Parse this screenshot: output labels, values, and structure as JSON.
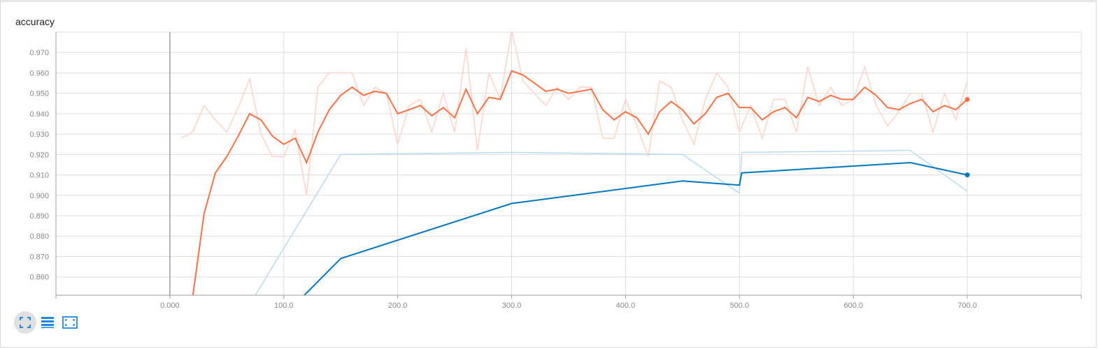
{
  "chart_data": {
    "type": "line",
    "title": "accuracy",
    "xlim": [
      -100,
      800
    ],
    "ylim": [
      0.851,
      0.98
    ],
    "x_ticks": [
      0,
      100,
      200,
      300,
      400,
      500,
      600,
      700
    ],
    "x_tick_labels": [
      "0.000",
      "100.0",
      "200.0",
      "300.0",
      "400.0",
      "500.0",
      "600.0",
      "700.0"
    ],
    "y_ticks": [
      0.86,
      0.87,
      0.88,
      0.89,
      0.9,
      0.91,
      0.92,
      0.93,
      0.94,
      0.95,
      0.96,
      0.97
    ],
    "y_tick_labels": [
      "0.860",
      "0.870",
      "0.880",
      "0.890",
      "0.900",
      "0.910",
      "0.920",
      "0.930",
      "0.940",
      "0.950",
      "0.960",
      "0.970"
    ],
    "grid": true,
    "series": [
      {
        "color": "#ff7043",
        "raw_color": "#ffd3c6",
        "x": [
          10,
          20,
          30,
          40,
          50,
          60,
          70,
          80,
          90,
          100,
          110,
          120,
          130,
          140,
          150,
          160,
          170,
          180,
          190,
          200,
          210,
          220,
          230,
          240,
          250,
          260,
          270,
          280,
          290,
          300,
          310,
          320,
          330,
          340,
          350,
          360,
          370,
          380,
          390,
          400,
          410,
          420,
          430,
          440,
          450,
          460,
          470,
          480,
          490,
          500,
          510,
          520,
          530,
          540,
          550,
          560,
          570,
          580,
          590,
          600,
          610,
          620,
          630,
          640,
          650,
          660,
          670,
          680,
          690,
          700
        ],
        "raw": [
          0.928,
          0.931,
          0.944,
          0.937,
          0.931,
          0.943,
          0.957,
          0.93,
          0.919,
          0.919,
          0.932,
          0.9,
          0.953,
          0.96,
          0.96,
          0.96,
          0.944,
          0.953,
          0.95,
          0.925,
          0.944,
          0.947,
          0.931,
          0.95,
          0.931,
          0.972,
          0.922,
          0.96,
          0.947,
          0.981,
          0.956,
          0.95,
          0.944,
          0.953,
          0.947,
          0.953,
          0.953,
          0.928,
          0.928,
          0.947,
          0.934,
          0.919,
          0.956,
          0.953,
          0.937,
          0.925,
          0.947,
          0.96,
          0.953,
          0.931,
          0.944,
          0.928,
          0.947,
          0.947,
          0.931,
          0.963,
          0.944,
          0.953,
          0.944,
          0.947,
          0.963,
          0.944,
          0.934,
          0.941,
          0.95,
          0.95,
          0.931,
          0.95,
          0.937,
          0.956
        ],
        "smoothed_x": [
          20,
          30,
          40,
          50,
          60,
          70,
          80,
          90,
          100,
          110,
          120,
          130,
          140,
          150,
          160,
          170,
          180,
          190,
          200,
          210,
          220,
          230,
          240,
          250,
          260,
          270,
          280,
          290,
          300,
          310,
          320,
          330,
          340,
          350,
          360,
          370,
          380,
          390,
          400,
          410,
          420,
          430,
          440,
          450,
          460,
          470,
          480,
          490,
          500,
          510,
          520,
          530,
          540,
          550,
          560,
          570,
          580,
          590,
          600,
          610,
          620,
          630,
          640,
          650,
          660,
          670,
          680,
          690,
          700
        ],
        "smoothed": [
          0.85,
          0.891,
          0.911,
          0.919,
          0.929,
          0.94,
          0.937,
          0.929,
          0.925,
          0.928,
          0.916,
          0.931,
          0.942,
          0.949,
          0.953,
          0.949,
          0.951,
          0.95,
          0.94,
          0.942,
          0.944,
          0.939,
          0.943,
          0.938,
          0.952,
          0.94,
          0.948,
          0.947,
          0.961,
          0.959,
          0.955,
          0.951,
          0.952,
          0.95,
          0.951,
          0.952,
          0.942,
          0.937,
          0.941,
          0.938,
          0.93,
          0.941,
          0.946,
          0.942,
          0.935,
          0.94,
          0.948,
          0.95,
          0.943,
          0.943,
          0.937,
          0.941,
          0.943,
          0.938,
          0.948,
          0.946,
          0.949,
          0.947,
          0.947,
          0.953,
          0.949,
          0.943,
          0.942,
          0.945,
          0.947,
          0.941,
          0.944,
          0.942,
          0.947
        ]
      },
      {
        "color": "#0277bd",
        "raw_color": "#b7dcf0",
        "x": [
          75,
          150,
          300,
          450,
          500,
          502,
          650,
          700
        ],
        "raw": [
          0.851,
          0.92,
          0.921,
          0.92,
          0.901,
          0.921,
          0.922,
          0.902
        ],
        "smoothed_x": [
          118,
          150,
          300,
          450,
          500,
          502,
          650,
          700
        ],
        "smoothed": [
          0.851,
          0.869,
          0.896,
          0.907,
          0.905,
          0.911,
          0.916,
          0.91
        ]
      }
    ]
  },
  "toolbar": {
    "icons": [
      "fullscreen-icon",
      "list-icon",
      "fit-screen-icon"
    ],
    "accent": "#1e88e5"
  }
}
